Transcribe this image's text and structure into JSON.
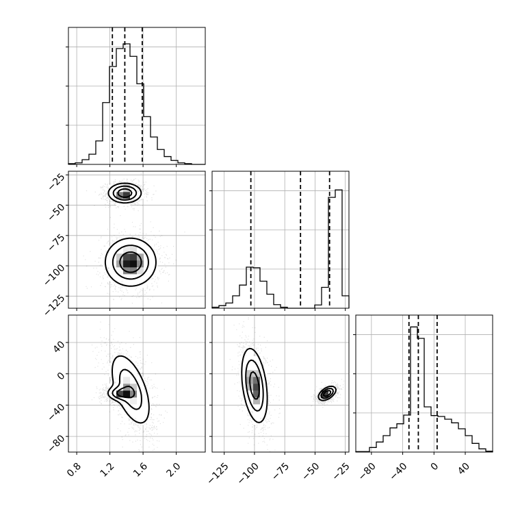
{
  "chart_data": {
    "type": "corner_plot",
    "parameters": [
      {
        "range": [
          0.7,
          2.35
        ],
        "ticks": [
          0.8,
          1.2,
          1.6,
          2.0
        ],
        "tick_labels": [
          "0.8",
          "1.2",
          "1.6",
          "2.0"
        ],
        "quantiles": [
          1.23,
          1.38,
          1.59
        ]
      },
      {
        "range": [
          -135,
          -22
        ],
        "ticks": [
          -125,
          -100,
          -75,
          -50,
          -25
        ],
        "tick_labels": [
          "−125",
          "−100",
          "−75",
          "−50",
          "−25"
        ],
        "quantiles": [
          -103,
          -62,
          -38
        ]
      },
      {
        "range": [
          -100,
          75
        ],
        "ticks": [
          -80,
          -40,
          0,
          40
        ],
        "tick_labels": [
          "−80",
          "−40",
          "0",
          "40"
        ],
        "quantiles": [
          -32,
          -20,
          4
        ]
      }
    ],
    "histograms": [
      {
        "param": 0,
        "edges_range": [
          0.7,
          2.35
        ],
        "bins": 20,
        "counts": [
          1,
          2,
          6,
          13,
          30,
          79,
          125,
          148,
          154,
          138,
          103,
          61,
          35,
          19,
          10,
          5,
          2,
          1,
          0,
          0
        ],
        "ylim": [
          0,
          175
        ]
      },
      {
        "param": 1,
        "edges_range": [
          -135,
          -22
        ],
        "bins": 20,
        "counts": [
          3,
          8,
          16,
          38,
          71,
          126,
          124,
          83,
          43,
          11,
          3,
          0,
          0,
          0,
          0,
          10,
          64,
          340,
          363,
          38
        ],
        "ylim": [
          0,
          420
        ]
      },
      {
        "param": 2,
        "edges_range": [
          -100,
          75
        ],
        "bins": 20,
        "counts": [
          1,
          1,
          10,
          22,
          36,
          53,
          62,
          81,
          274,
          249,
          99,
          80,
          78,
          72,
          64,
          51,
          36,
          19,
          7,
          2
        ],
        "ylim": [
          0,
          300
        ]
      }
    ],
    "density_panels": [
      {
        "x_param": 0,
        "y_param": 1,
        "modes": [
          {
            "x": 1.38,
            "y": -40,
            "sx": 0.11,
            "sy": 4.5,
            "w": 0.5,
            "rho": 0
          },
          {
            "x": 1.45,
            "y": -97,
            "sx": 0.17,
            "sy": 11,
            "w": 0.5,
            "rho": 0
          }
        ]
      },
      {
        "x_param": 0,
        "y_param": 2,
        "modes": [
          {
            "x": 1.32,
            "y": -25,
            "sx": 0.09,
            "sy": 5,
            "w": 0.5,
            "rho": 0
          },
          {
            "x": 1.45,
            "y": -20,
            "sx": 0.14,
            "sy": 27,
            "w": 0.5,
            "rho": -0.55
          }
        ]
      },
      {
        "x_param": 1,
        "y_param": 2,
        "modes": [
          {
            "x": -100,
            "y": -15,
            "sx": 6,
            "sy": 27,
            "w": 0.5,
            "rho": -0.35
          },
          {
            "x": -40,
            "y": -25,
            "sx": 4,
            "sy": 5,
            "w": 0.5,
            "rho": 0.5
          }
        ]
      }
    ]
  }
}
